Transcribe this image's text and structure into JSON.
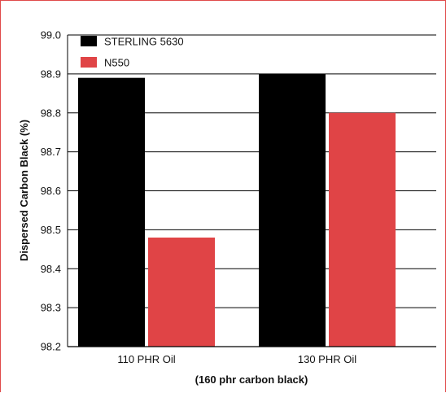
{
  "chart_data": {
    "type": "bar",
    "categories": [
      "110 PHR Oil",
      "130 PHR Oil"
    ],
    "series": [
      {
        "name": "STERLING 5630",
        "values": [
          98.89,
          98.9
        ],
        "color": "#000000"
      },
      {
        "name": "N550",
        "values": [
          98.48,
          98.8
        ],
        "color": "#e04446"
      }
    ],
    "ylabel": "Dispersed Carbon Black (%)",
    "xlabel": "(160 phr carbon black)",
    "ylim": [
      98.2,
      99.0
    ],
    "yticks": [
      "98.2",
      "98.3",
      "98.4",
      "98.5",
      "98.6",
      "98.7",
      "98.8",
      "98.9",
      "99.0"
    ],
    "grid": true,
    "legend_position": "top-left"
  }
}
